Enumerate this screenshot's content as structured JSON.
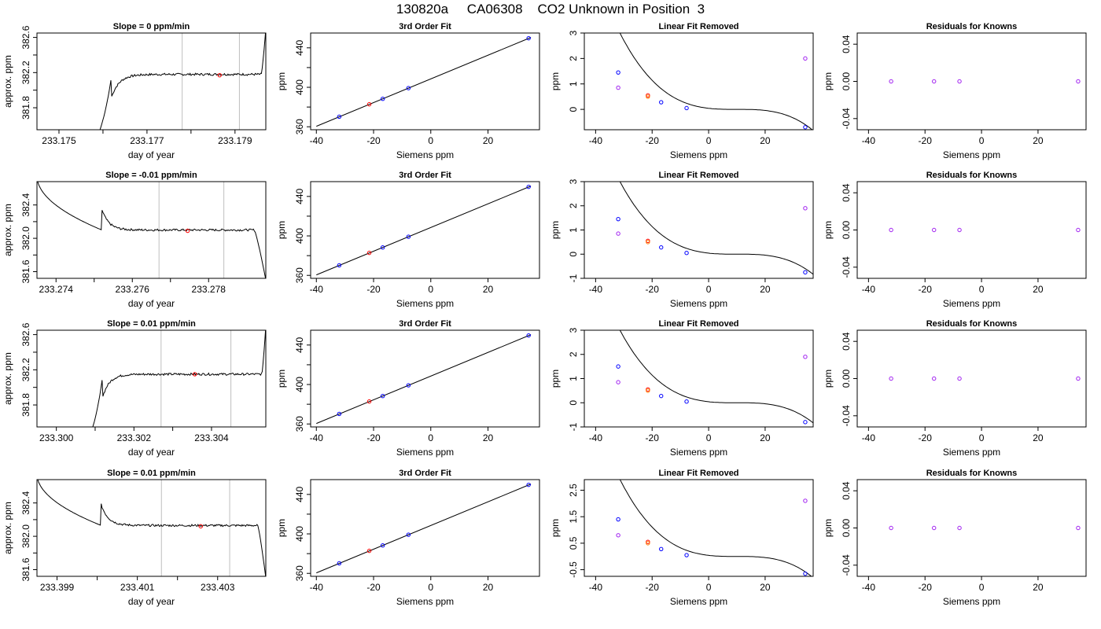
{
  "figure": {
    "title": "130820a     CA06308    CO2 Unknown in Position  3"
  },
  "style": {
    "trace_color": "#000000",
    "marker_red": "#ff0000",
    "marker_orange": "#ff7f00",
    "marker_blue": "#0000ff",
    "marker_purple": "#a020f0",
    "vline_color": "#bebebe",
    "fit_color": "#000000"
  },
  "chart_data": [
    {
      "type": "line",
      "panel": "trace",
      "row": 1,
      "title": "Slope =  0  ppm/min",
      "xlabel": "day of year",
      "ylabel": "approx. ppm",
      "xlim": [
        233.1745,
        233.1797
      ],
      "ylim": [
        381.55,
        382.65
      ],
      "xticks": [
        233.175,
        233.176,
        233.177,
        233.178,
        233.179
      ],
      "xticklabels": [
        "233.175",
        "",
        "233.177",
        "",
        "233.179"
      ],
      "yticks": [
        381.8,
        382.0,
        382.2,
        382.4,
        382.6
      ],
      "yticklabels": [
        "381.8",
        "",
        "382.2",
        "",
        "382.6"
      ],
      "vlines": [
        233.1778,
        233.1791
      ],
      "marker": {
        "x": 233.17865,
        "y": 382.17
      },
      "plateau": 382.18,
      "x_rise": 233.1762,
      "x_fall": 233.1796,
      "start": 381.5,
      "end": 382.7,
      "end_shape": "spike-up"
    },
    {
      "type": "scatter",
      "panel": "fit",
      "row": 1,
      "title": "3rd Order Fit",
      "xlabel": "Siemens ppm",
      "ylabel": "ppm",
      "xlim": [
        -42,
        38
      ],
      "ylim": [
        357,
        455
      ],
      "xticks": [
        -40,
        -20,
        0,
        20
      ],
      "yticks": [
        360,
        380,
        400,
        420,
        440
      ],
      "yticklabels": [
        "360",
        "",
        "400",
        "",
        "440"
      ],
      "line": {
        "x": [
          -40,
          35
        ],
        "y": [
          360.5,
          450.5
        ]
      },
      "points": [
        {
          "x": -32,
          "y": 370.2,
          "color": "blue"
        },
        {
          "x": -21.5,
          "y": 382.8,
          "color": "red"
        },
        {
          "x": -16.8,
          "y": 388.3,
          "color": "blue"
        },
        {
          "x": -7.8,
          "y": 399.2,
          "color": "blue"
        },
        {
          "x": 34.2,
          "y": 449.7,
          "color": "blue"
        }
      ]
    },
    {
      "type": "scatter",
      "panel": "resid",
      "row": 1,
      "title": "Linear Fit Removed",
      "xlabel": "Siemens ppm",
      "ylabel": "ppm",
      "xlim": [
        -44,
        37
      ],
      "ylim": [
        -0.8,
        3.0
      ],
      "xticks": [
        -40,
        -20,
        0,
        20
      ],
      "yticks": [
        0,
        1,
        2,
        3
      ],
      "yticklabels": [
        "0",
        "1",
        "2",
        "3"
      ],
      "curve": {
        "x0": 10,
        "a": -4.23e-05,
        "b": 0.0
      },
      "points": [
        {
          "x": -32,
          "y": 1.45,
          "color": "blue"
        },
        {
          "x": -32,
          "y": 0.85,
          "color": "purple"
        },
        {
          "x": -21.5,
          "y": 0.55,
          "color": "red"
        },
        {
          "x": -21.5,
          "y": 0.5,
          "color": "orange"
        },
        {
          "x": -16.8,
          "y": 0.28,
          "color": "blue"
        },
        {
          "x": -7.8,
          "y": 0.05,
          "color": "blue"
        },
        {
          "x": 34.2,
          "y": -0.7,
          "color": "blue"
        },
        {
          "x": 34.2,
          "y": 2.0,
          "color": "purple"
        }
      ]
    },
    {
      "type": "scatter",
      "panel": "known",
      "row": 1,
      "title": "Residuals for Knowns",
      "xlabel": "Siemens ppm",
      "ylabel": "ppm",
      "xlim": [
        -44,
        37
      ],
      "ylim": [
        -0.052,
        0.052
      ],
      "xticks": [
        -40,
        -20,
        0,
        20
      ],
      "yticks": [
        -0.04,
        0.0,
        0.04
      ],
      "yticklabels": [
        "-0.04",
        "0.00",
        "0.04"
      ],
      "points": [
        {
          "x": -32,
          "y": 0,
          "color": "purple"
        },
        {
          "x": -16.8,
          "y": 0,
          "color": "purple"
        },
        {
          "x": -7.8,
          "y": 0,
          "color": "purple"
        },
        {
          "x": 34.2,
          "y": 0,
          "color": "purple"
        }
      ]
    },
    {
      "type": "line",
      "panel": "trace",
      "row": 2,
      "title": "Slope =  -0.01  ppm/min",
      "xlabel": "day of year",
      "ylabel": "approx. ppm",
      "xlim": [
        233.2735,
        233.2795
      ],
      "ylim": [
        381.52,
        382.68
      ],
      "xticks": [
        233.274,
        233.275,
        233.276,
        233.277,
        233.278
      ],
      "xticklabels": [
        "233.274",
        "",
        "233.276",
        "",
        "233.278"
      ],
      "yticks": [
        381.6,
        381.8,
        382.0,
        382.2,
        382.4
      ],
      "yticklabels": [
        "381.6",
        "",
        "382.0",
        "",
        "382.4"
      ],
      "vlines": [
        233.2767,
        233.2784
      ],
      "marker": {
        "x": 233.27745,
        "y": 382.09
      },
      "plateau": 382.1,
      "x_rise": 233.2752,
      "x_fall": 233.2792,
      "start": 382.75,
      "end": 381.5,
      "end_shape": "drop-down"
    },
    {
      "type": "scatter",
      "panel": "fit",
      "row": 2,
      "title": "3rd Order Fit",
      "xlabel": "Siemens ppm",
      "ylabel": "ppm",
      "xlim": [
        -42,
        38
      ],
      "ylim": [
        357,
        455
      ],
      "xticks": [
        -40,
        -20,
        0,
        20
      ],
      "yticks": [
        360,
        380,
        400,
        420,
        440
      ],
      "yticklabels": [
        "360",
        "",
        "400",
        "",
        "440"
      ],
      "line": {
        "x": [
          -40,
          35
        ],
        "y": [
          360.5,
          450.5
        ]
      },
      "points": [
        {
          "x": -32,
          "y": 370.2,
          "color": "blue"
        },
        {
          "x": -21.5,
          "y": 382.8,
          "color": "red"
        },
        {
          "x": -16.8,
          "y": 388.3,
          "color": "blue"
        },
        {
          "x": -7.8,
          "y": 399.2,
          "color": "blue"
        },
        {
          "x": 34.2,
          "y": 449.7,
          "color": "blue"
        }
      ]
    },
    {
      "type": "scatter",
      "panel": "resid",
      "row": 2,
      "title": "Linear Fit Removed",
      "xlabel": "Siemens ppm",
      "ylabel": "ppm",
      "xlim": [
        -44,
        37
      ],
      "ylim": [
        -1.0,
        3.0
      ],
      "xticks": [
        -40,
        -20,
        0,
        20
      ],
      "yticks": [
        -1,
        0,
        1,
        2,
        3
      ],
      "yticklabels": [
        "-1",
        "0",
        "1",
        "2",
        "3"
      ],
      "curve": {
        "x0": 10,
        "a": -4.23e-05,
        "b": 0.0
      },
      "points": [
        {
          "x": -32,
          "y": 1.45,
          "color": "blue"
        },
        {
          "x": -32,
          "y": 0.85,
          "color": "purple"
        },
        {
          "x": -21.5,
          "y": 0.55,
          "color": "red"
        },
        {
          "x": -21.5,
          "y": 0.5,
          "color": "orange"
        },
        {
          "x": -16.8,
          "y": 0.28,
          "color": "blue"
        },
        {
          "x": -7.8,
          "y": 0.05,
          "color": "blue"
        },
        {
          "x": 34.2,
          "y": -0.75,
          "color": "blue"
        },
        {
          "x": 34.2,
          "y": 1.9,
          "color": "purple"
        }
      ]
    },
    {
      "type": "scatter",
      "panel": "known",
      "row": 2,
      "title": "Residuals for Knowns",
      "xlabel": "Siemens ppm",
      "ylabel": "ppm",
      "xlim": [
        -44,
        37
      ],
      "ylim": [
        -0.052,
        0.052
      ],
      "xticks": [
        -40,
        -20,
        0,
        20
      ],
      "yticks": [
        -0.04,
        0.0,
        0.04
      ],
      "yticklabels": [
        "-0.04",
        "0.00",
        "0.04"
      ],
      "points": [
        {
          "x": -32,
          "y": 0,
          "color": "purple"
        },
        {
          "x": -16.8,
          "y": 0,
          "color": "purple"
        },
        {
          "x": -7.8,
          "y": 0,
          "color": "purple"
        },
        {
          "x": 34.2,
          "y": 0,
          "color": "purple"
        }
      ]
    },
    {
      "type": "line",
      "panel": "trace",
      "row": 3,
      "title": "Slope =  0.01  ppm/min",
      "xlabel": "day of year",
      "ylabel": "approx. ppm",
      "xlim": [
        233.2995,
        233.3054
      ],
      "ylim": [
        381.55,
        382.65
      ],
      "xticks": [
        233.3,
        233.301,
        233.302,
        233.303,
        233.304
      ],
      "xticklabels": [
        "233.300",
        "",
        "233.302",
        "",
        "233.304"
      ],
      "yticks": [
        381.8,
        382.0,
        382.2,
        382.4,
        382.6
      ],
      "yticklabels": [
        "381.8",
        "",
        "382.2",
        "",
        "382.6"
      ],
      "vlines": [
        233.3027,
        233.3045
      ],
      "marker": {
        "x": 233.30357,
        "y": 382.15
      },
      "plateau": 382.15,
      "x_rise": 233.3012,
      "x_fall": 233.3053,
      "start": 381.5,
      "end": 382.7,
      "end_shape": "spike-up"
    },
    {
      "type": "scatter",
      "panel": "fit",
      "row": 3,
      "title": "3rd Order Fit",
      "xlabel": "Siemens ppm",
      "ylabel": "ppm",
      "xlim": [
        -42,
        38
      ],
      "ylim": [
        357,
        455
      ],
      "xticks": [
        -40,
        -20,
        0,
        20
      ],
      "yticks": [
        360,
        380,
        400,
        420,
        440
      ],
      "yticklabels": [
        "360",
        "",
        "400",
        "",
        "440"
      ],
      "line": {
        "x": [
          -40,
          35
        ],
        "y": [
          360.5,
          450.5
        ]
      },
      "points": [
        {
          "x": -32,
          "y": 370.2,
          "color": "blue"
        },
        {
          "x": -21.5,
          "y": 382.8,
          "color": "red"
        },
        {
          "x": -16.8,
          "y": 388.3,
          "color": "blue"
        },
        {
          "x": -7.8,
          "y": 399.2,
          "color": "blue"
        },
        {
          "x": 34.2,
          "y": 449.7,
          "color": "blue"
        }
      ]
    },
    {
      "type": "scatter",
      "panel": "resid",
      "row": 3,
      "title": "Linear Fit Removed",
      "xlabel": "Siemens ppm",
      "ylabel": "ppm",
      "xlim": [
        -44,
        37
      ],
      "ylim": [
        -1.0,
        3.0
      ],
      "xticks": [
        -40,
        -20,
        0,
        20
      ],
      "yticks": [
        -1,
        0,
        1,
        2,
        3
      ],
      "yticklabels": [
        "-1",
        "0",
        "1",
        "2",
        "3"
      ],
      "curve": {
        "x0": 10,
        "a": -4.23e-05,
        "b": 0.0
      },
      "points": [
        {
          "x": -32,
          "y": 1.5,
          "color": "blue"
        },
        {
          "x": -32,
          "y": 0.85,
          "color": "purple"
        },
        {
          "x": -21.5,
          "y": 0.55,
          "color": "red"
        },
        {
          "x": -21.5,
          "y": 0.5,
          "color": "orange"
        },
        {
          "x": -16.8,
          "y": 0.28,
          "color": "blue"
        },
        {
          "x": -7.8,
          "y": 0.05,
          "color": "blue"
        },
        {
          "x": 34.2,
          "y": -0.8,
          "color": "blue"
        },
        {
          "x": 34.2,
          "y": 1.9,
          "color": "purple"
        }
      ]
    },
    {
      "type": "scatter",
      "panel": "known",
      "row": 3,
      "title": "Residuals for Knowns",
      "xlabel": "Siemens ppm",
      "ylabel": "ppm",
      "xlim": [
        -44,
        37
      ],
      "ylim": [
        -0.052,
        0.052
      ],
      "xticks": [
        -40,
        -20,
        0,
        20
      ],
      "yticks": [
        -0.04,
        0.0,
        0.04
      ],
      "yticklabels": [
        "-0.04",
        "0.00",
        "0.04"
      ],
      "points": [
        {
          "x": -32,
          "y": 0,
          "color": "purple"
        },
        {
          "x": -16.8,
          "y": 0,
          "color": "purple"
        },
        {
          "x": -7.8,
          "y": 0,
          "color": "purple"
        },
        {
          "x": 34.2,
          "y": 0,
          "color": "purple"
        }
      ]
    },
    {
      "type": "line",
      "panel": "trace",
      "row": 4,
      "title": "Slope =  0.01  ppm/min",
      "xlabel": "day of year",
      "ylabel": "approx. ppm",
      "xlim": [
        233.3985,
        233.4042
      ],
      "ylim": [
        381.52,
        382.68
      ],
      "xticks": [
        233.399,
        233.4,
        233.401,
        233.402,
        233.403
      ],
      "xticklabels": [
        "233.399",
        "",
        "233.401",
        "",
        "233.403"
      ],
      "yticks": [
        381.6,
        381.8,
        382.0,
        382.2,
        382.4
      ],
      "yticklabels": [
        "381.6",
        "",
        "382.0",
        "",
        "382.4"
      ],
      "vlines": [
        233.4016,
        233.4033
      ],
      "marker": {
        "x": 233.40258,
        "y": 382.12
      },
      "plateau": 382.13,
      "x_rise": 233.4001,
      "x_fall": 233.404,
      "start": 382.75,
      "end": 381.5,
      "end_shape": "drop-down"
    },
    {
      "type": "scatter",
      "panel": "fit",
      "row": 4,
      "title": "3rd Order Fit",
      "xlabel": "Siemens ppm",
      "ylabel": "ppm",
      "xlim": [
        -42,
        38
      ],
      "ylim": [
        357,
        455
      ],
      "xticks": [
        -40,
        -20,
        0,
        20
      ],
      "yticks": [
        360,
        380,
        400,
        420,
        440
      ],
      "yticklabels": [
        "360",
        "",
        "400",
        "",
        "440"
      ],
      "line": {
        "x": [
          -40,
          35
        ],
        "y": [
          360.5,
          450.5
        ]
      },
      "points": [
        {
          "x": -32,
          "y": 370.2,
          "color": "blue"
        },
        {
          "x": -21.5,
          "y": 382.8,
          "color": "red"
        },
        {
          "x": -16.8,
          "y": 388.3,
          "color": "blue"
        },
        {
          "x": -7.8,
          "y": 399.2,
          "color": "blue"
        },
        {
          "x": 34.2,
          "y": 449.7,
          "color": "blue"
        }
      ]
    },
    {
      "type": "scatter",
      "panel": "resid",
      "row": 4,
      "title": "Linear Fit Removed",
      "xlabel": "Siemens ppm",
      "ylabel": "ppm",
      "xlim": [
        -44,
        37
      ],
      "ylim": [
        -0.75,
        2.9
      ],
      "xticks": [
        -40,
        -20,
        0,
        20
      ],
      "yticks": [
        -0.5,
        0.5,
        1.5,
        2.5
      ],
      "yticklabels": [
        "-0.5",
        "0.5",
        "1.5",
        "2.5"
      ],
      "curve": {
        "x0": 10,
        "a": -4.1e-05,
        "b": 0.0
      },
      "points": [
        {
          "x": -32,
          "y": 1.4,
          "color": "blue"
        },
        {
          "x": -32,
          "y": 0.8,
          "color": "purple"
        },
        {
          "x": -21.5,
          "y": 0.55,
          "color": "red"
        },
        {
          "x": -21.5,
          "y": 0.5,
          "color": "orange"
        },
        {
          "x": -16.8,
          "y": 0.28,
          "color": "blue"
        },
        {
          "x": -7.8,
          "y": 0.05,
          "color": "blue"
        },
        {
          "x": 34.2,
          "y": -0.65,
          "color": "blue"
        },
        {
          "x": 34.2,
          "y": 2.1,
          "color": "purple"
        }
      ]
    },
    {
      "type": "scatter",
      "panel": "known",
      "row": 4,
      "title": "Residuals for Knowns",
      "xlabel": "Siemens ppm",
      "ylabel": "ppm",
      "xlim": [
        -44,
        37
      ],
      "ylim": [
        -0.052,
        0.052
      ],
      "xticks": [
        -40,
        -20,
        0,
        20
      ],
      "yticks": [
        -0.04,
        0.0,
        0.04
      ],
      "yticklabels": [
        "-0.04",
        "0.00",
        "0.04"
      ],
      "points": [
        {
          "x": -32,
          "y": 0,
          "color": "purple"
        },
        {
          "x": -16.8,
          "y": 0,
          "color": "purple"
        },
        {
          "x": -7.8,
          "y": 0,
          "color": "purple"
        },
        {
          "x": 34.2,
          "y": 0,
          "color": "purple"
        }
      ]
    }
  ]
}
